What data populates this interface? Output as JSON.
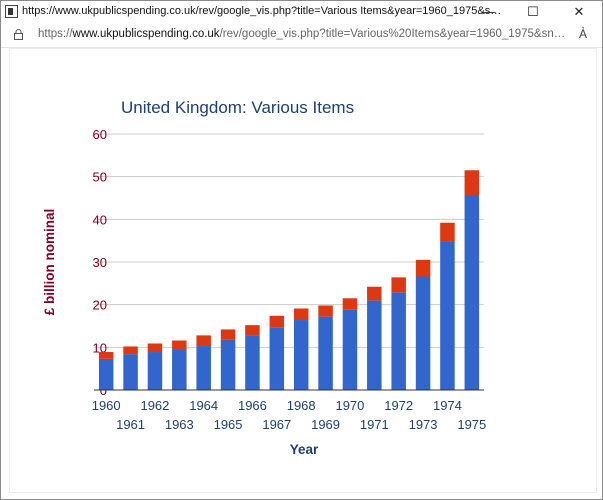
{
  "window": {
    "title": "https://www.ukpublicspending.co.uk/rev/google_vis.php?title=Various Items&year=1960_1975&sname=United_Kingdo...",
    "minimize_glyph": "—",
    "maximize_glyph": "☐",
    "close_glyph": "✕"
  },
  "address": {
    "prefix": "https://",
    "host": "www.ukpublicspending.co.uk",
    "path": "/rev/google_vis.php?title=Various%20Items&year=1960_1975&sname=United_...",
    "read_aloud": "A҆"
  },
  "icons": {
    "lock": "lock-icon",
    "read_aloud": "read-aloud-icon",
    "app": "app-icon"
  },
  "colors": {
    "series_lower": "#3366cc",
    "series_upper": "#dc3912",
    "title": "#1f3f6e",
    "axis_label": "#800020",
    "tick_text": "#1f3f6e",
    "grid": "#cccccc"
  },
  "chart_data": {
    "type": "bar",
    "stacked": true,
    "title": "United Kingdom: Various Items",
    "xlabel": "Year",
    "ylabel": "£ billion nominal",
    "ylim": [
      0,
      60
    ],
    "yticks": [
      0,
      10,
      20,
      30,
      40,
      50,
      60
    ],
    "grid": true,
    "legend": "none",
    "categories": [
      "1960",
      "1961",
      "1962",
      "1963",
      "1964",
      "1965",
      "1966",
      "1967",
      "1968",
      "1969",
      "1970",
      "1971",
      "1972",
      "1973",
      "1974",
      "1975"
    ],
    "series": [
      {
        "values": [
          7.3,
          8.4,
          8.9,
          9.6,
          10.3,
          11.8,
          12.8,
          14.7,
          16.4,
          17.2,
          18.8,
          21.0,
          22.9,
          26.6,
          34.7,
          45.7
        ]
      },
      {
        "values": [
          1.6,
          1.8,
          2.0,
          2.0,
          2.5,
          2.4,
          2.4,
          2.7,
          2.7,
          2.6,
          2.7,
          3.2,
          3.5,
          3.9,
          4.5,
          5.8
        ]
      }
    ]
  }
}
